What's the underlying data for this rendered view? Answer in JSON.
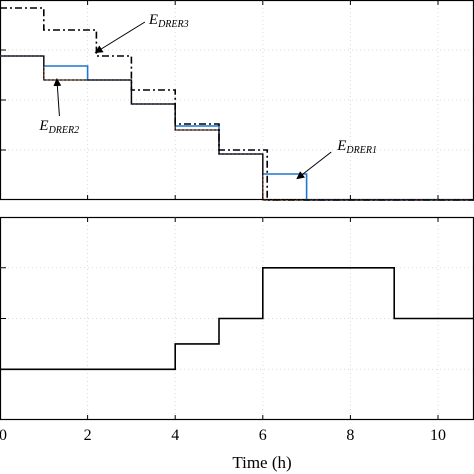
{
  "chart_data": [
    {
      "type": "line",
      "step": true,
      "xlim": [
        0,
        11.5
      ],
      "ylim": [
        0,
        1.0
      ],
      "grid": true,
      "series": [
        {
          "name": "E_DRER1",
          "color": "#1f77d0",
          "style": "solid",
          "x": [
            0,
            1.0,
            1.0,
            2.0,
            2.0,
            3.0,
            3.0,
            4.0,
            4.0,
            5.0,
            5.0,
            6.0,
            6.0,
            7.0,
            7.0,
            11.5
          ],
          "y": [
            0.72,
            0.72,
            0.67,
            0.67,
            0.6,
            0.6,
            0.48,
            0.48,
            0.37,
            0.37,
            0.23,
            0.23,
            0.13,
            0.13,
            0.0,
            0.0
          ]
        },
        {
          "name": "E_DRER2",
          "color": "#e8501e",
          "style": "dotted",
          "x": [
            0,
            1.0,
            1.0,
            2.0,
            2.0,
            3.0,
            3.0,
            4.0,
            4.0,
            5.0,
            5.0,
            6.0,
            6.0,
            11.5
          ],
          "y": [
            0.72,
            0.72,
            0.6,
            0.6,
            0.6,
            0.6,
            0.48,
            0.48,
            0.35,
            0.35,
            0.23,
            0.23,
            0.0,
            0.0
          ]
        },
        {
          "name": "E_DRER3",
          "color": "#000000",
          "style": "dashdot",
          "x": [
            0,
            1.0,
            1.0,
            2.2,
            2.2,
            3.0,
            3.0,
            4.0,
            4.0,
            5.0,
            5.0,
            6.1,
            6.1,
            11.5
          ],
          "y": [
            0.96,
            0.96,
            0.85,
            0.85,
            0.72,
            0.72,
            0.55,
            0.55,
            0.38,
            0.38,
            0.25,
            0.25,
            0.0,
            0.0
          ]
        },
        {
          "name": "",
          "color": "#000000",
          "style": "solid",
          "x": [
            0,
            1.0,
            1.0,
            2.0,
            2.0,
            3.0,
            3.0,
            4.0,
            4.0,
            5.0,
            5.0,
            6.0,
            6.0,
            11.5
          ],
          "y": [
            0.72,
            0.72,
            0.6,
            0.6,
            0.6,
            0.6,
            0.48,
            0.48,
            0.35,
            0.35,
            0.23,
            0.23,
            0.0,
            0.0
          ]
        }
      ],
      "annotations": [
        {
          "label_main": "E",
          "label_sub": "DRER3",
          "x": 3.4,
          "y": 0.88,
          "arrow_to": [
            2.2,
            0.74
          ]
        },
        {
          "label_main": "E",
          "label_sub": "DRER2",
          "x": 0.9,
          "y": 0.35,
          "arrow_to": [
            1.3,
            0.6
          ]
        },
        {
          "label_main": "E",
          "label_sub": "DRER1",
          "x": 7.7,
          "y": 0.25,
          "arrow_to": [
            6.8,
            0.11
          ]
        }
      ]
    },
    {
      "type": "line",
      "step": true,
      "xlabel": "Time (h)",
      "xlim": [
        0,
        11.5
      ],
      "ylim": [
        0,
        4
      ],
      "grid": true,
      "xticks": [
        0,
        2,
        4,
        6,
        8,
        10
      ],
      "xtick_labels": [
        "0",
        "2",
        "4",
        "6",
        "8",
        "10"
      ],
      "series": [
        {
          "name": "",
          "color": "#000000",
          "style": "solid",
          "x": [
            0,
            4,
            4,
            5,
            5,
            6,
            6,
            9,
            9,
            11.5
          ],
          "y": [
            1.0,
            1.0,
            1.5,
            1.5,
            2.0,
            2.0,
            3.0,
            3.0,
            2.0,
            2.0
          ]
        }
      ]
    }
  ]
}
